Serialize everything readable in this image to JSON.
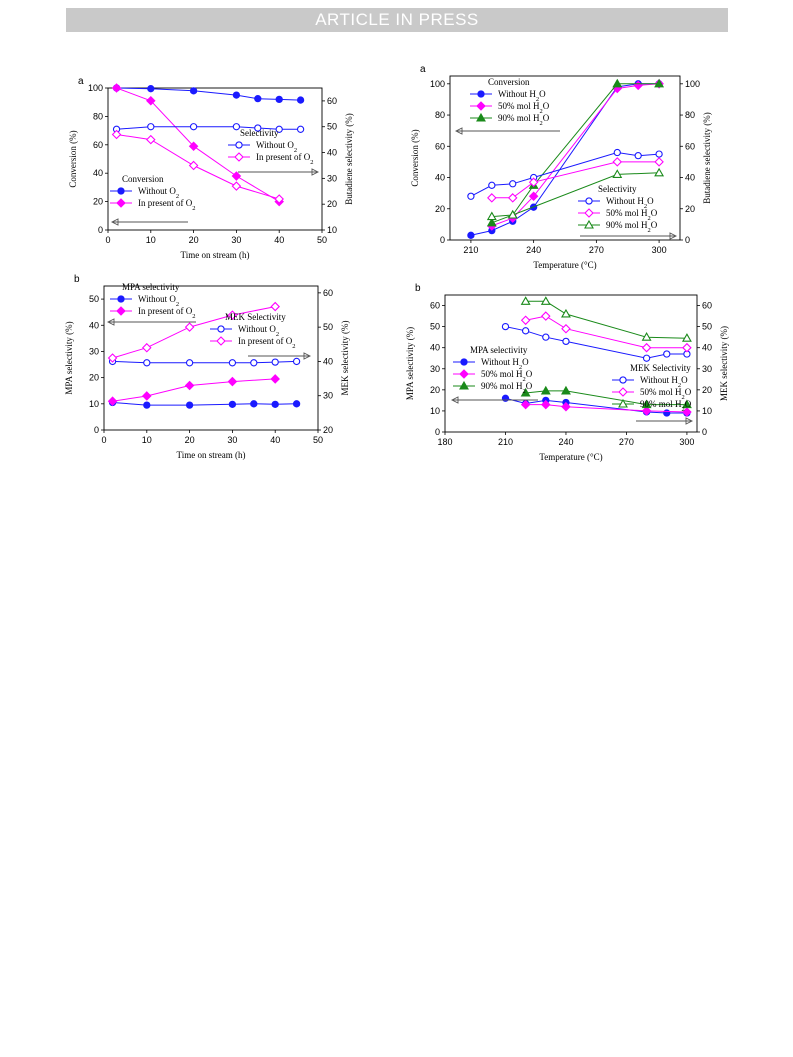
{
  "banner": "ARTICLE IN PRESS",
  "colors": {
    "blue": "#1a1aff",
    "magenta": "#ff00ff",
    "green": "#1a8a1a",
    "arrow": "#555555"
  },
  "chart_data": [
    {
      "id": "tl",
      "type": "line",
      "panel_label": "a",
      "xlabel": "Time on stream (h)",
      "ylabel": "Conversion (%)",
      "y2label": "Butadiene selectivity (%)",
      "xlim": [
        0,
        50
      ],
      "ylim": [
        0,
        100
      ],
      "y2lim": [
        10,
        65
      ],
      "xticks": [
        0,
        10,
        20,
        30,
        40,
        50
      ],
      "yticks": [
        0,
        20,
        40,
        60,
        80,
        100
      ],
      "y2ticks": [
        10,
        20,
        30,
        40,
        50,
        60
      ],
      "legends": [
        {
          "title": "Conversion",
          "items": [
            {
              "name": "Without O2",
              "label": "Without O",
              "sub": "2",
              "color": "blue",
              "marker": "circle",
              "filled": true
            },
            {
              "name": "In present of O2",
              "label": "In present of O",
              "sub": "2",
              "color": "magenta",
              "marker": "diamond",
              "filled": true
            }
          ]
        },
        {
          "title": "Selectivity",
          "items": [
            {
              "name": "Without O2",
              "label": "Without O",
              "sub": "2",
              "color": "blue",
              "marker": "circle",
              "filled": false
            },
            {
              "name": "In present of O2",
              "label": "In present of O",
              "sub": "2",
              "color": "magenta",
              "marker": "diamond",
              "filled": false
            }
          ]
        }
      ],
      "series": [
        {
          "name": "Conversion without O2",
          "axis": "left",
          "color": "blue",
          "marker": "circle",
          "filled": true,
          "x": [
            2,
            10,
            20,
            30,
            35,
            40,
            45
          ],
          "y": [
            100,
            99.5,
            98,
            95,
            92.5,
            92,
            91.5
          ]
        },
        {
          "name": "Conversion in present of O2",
          "axis": "left",
          "color": "magenta",
          "marker": "diamond",
          "filled": true,
          "x": [
            2,
            10,
            20,
            30,
            40
          ],
          "y": [
            100,
            91,
            59,
            38,
            20
          ]
        },
        {
          "name": "Selectivity without O2",
          "axis": "right",
          "color": "blue",
          "marker": "circle",
          "filled": false,
          "x": [
            2,
            10,
            20,
            30,
            35,
            40,
            45
          ],
          "y": [
            49,
            50,
            50,
            50,
            49.5,
            49,
            49
          ]
        },
        {
          "name": "Selectivity in present of O2",
          "axis": "right",
          "color": "magenta",
          "marker": "diamond",
          "filled": false,
          "x": [
            2,
            10,
            20,
            30,
            40
          ],
          "y": [
            47,
            45,
            35,
            27,
            22
          ]
        }
      ]
    },
    {
      "id": "bl",
      "type": "line",
      "panel_label": "b",
      "xlabel": "Time on stream (h)",
      "ylabel": "MPA selectivity (%)",
      "y2label": "MEK selectivity (%)",
      "xlim": [
        0,
        50
      ],
      "ylim": [
        0,
        55
      ],
      "y2lim": [
        20,
        62
      ],
      "xticks": [
        0,
        10,
        20,
        30,
        40,
        50
      ],
      "yticks": [
        0,
        10,
        20,
        30,
        40,
        50
      ],
      "y2ticks": [
        20,
        30,
        40,
        50,
        60
      ],
      "legends": [
        {
          "title": "MPA selectivity",
          "items": [
            {
              "name": "Without O2",
              "label": "Without O",
              "sub": "2",
              "color": "blue",
              "marker": "circle",
              "filled": true
            },
            {
              "name": "In present of O2",
              "label": "In present of O",
              "sub": "2",
              "color": "magenta",
              "marker": "diamond",
              "filled": true
            }
          ]
        },
        {
          "title": "MEK Selectivity",
          "items": [
            {
              "name": "Without O2",
              "label": "Without O",
              "sub": "2",
              "color": "blue",
              "marker": "circle",
              "filled": false
            },
            {
              "name": "In present of O2",
              "label": "In present of O",
              "sub": "2",
              "color": "magenta",
              "marker": "diamond",
              "filled": false
            }
          ]
        }
      ],
      "series": [
        {
          "name": "MPA without O2",
          "axis": "left",
          "color": "blue",
          "marker": "circle",
          "filled": true,
          "x": [
            2,
            10,
            20,
            30,
            35,
            40,
            45
          ],
          "y": [
            10.5,
            9.5,
            9.5,
            9.8,
            10,
            9.8,
            10
          ]
        },
        {
          "name": "MPA in present of O2",
          "axis": "left",
          "color": "magenta",
          "marker": "diamond",
          "filled": true,
          "x": [
            2,
            10,
            20,
            30,
            40
          ],
          "y": [
            11,
            13,
            17,
            18.5,
            19.5
          ]
        },
        {
          "name": "MEK without O2",
          "axis": "right",
          "color": "blue",
          "marker": "circle",
          "filled": false,
          "x": [
            2,
            10,
            20,
            30,
            35,
            40,
            45
          ],
          "y": [
            40,
            39.6,
            39.6,
            39.6,
            39.6,
            39.8,
            40
          ]
        },
        {
          "name": "MEK in present of O2",
          "axis": "right",
          "color": "magenta",
          "marker": "diamond",
          "filled": false,
          "x": [
            2,
            10,
            20,
            30,
            40
          ],
          "y": [
            41,
            44,
            50,
            53.5,
            56
          ]
        }
      ]
    },
    {
      "id": "tr",
      "type": "line",
      "panel_label": "a",
      "xlabel": "Temperature (°C)",
      "ylabel": "Conversion (%)",
      "y2label": "Butadiene selectivity (%)",
      "xlim": [
        200,
        310
      ],
      "ylim": [
        0,
        105
      ],
      "y2lim": [
        0,
        105
      ],
      "xticks": [
        210,
        240,
        270,
        300
      ],
      "yticks": [
        0,
        20,
        40,
        60,
        80,
        100
      ],
      "y2ticks": [
        0,
        20,
        40,
        60,
        80,
        100
      ],
      "legends": [
        {
          "title": "Conversion",
          "items": [
            {
              "name": "Without H2O",
              "label": "Without H",
              "sub": "2",
              "tail": "O",
              "color": "blue",
              "marker": "circle",
              "filled": true
            },
            {
              "name": "50% mol H2O",
              "label": "50% mol H",
              "sub": "2",
              "tail": "O",
              "color": "magenta",
              "marker": "diamond",
              "filled": true
            },
            {
              "name": "90% mol H2O",
              "label": "90% mol H",
              "sub": "2",
              "tail": "O",
              "color": "green",
              "marker": "triangle",
              "filled": true
            }
          ]
        },
        {
          "title": "Selectivity",
          "items": [
            {
              "name": "Without H2O",
              "label": "Without H",
              "sub": "2",
              "tail": "O",
              "color": "blue",
              "marker": "circle",
              "filled": false
            },
            {
              "name": "50% mol H2O",
              "label": "50% mol H",
              "sub": "2",
              "tail": "O",
              "color": "magenta",
              "marker": "diamond",
              "filled": false
            },
            {
              "name": "90% mol H2O",
              "label": "90% mol H",
              "sub": "2",
              "tail": "O",
              "color": "green",
              "marker": "triangle",
              "filled": false
            }
          ]
        }
      ],
      "series": [
        {
          "name": "Conversion without H2O",
          "axis": "left",
          "color": "blue",
          "marker": "circle",
          "filled": true,
          "x": [
            210,
            220,
            230,
            240,
            280,
            290,
            300
          ],
          "y": [
            3,
            6,
            12,
            21,
            98,
            100,
            100
          ]
        },
        {
          "name": "Conversion 50% mol H2O",
          "axis": "left",
          "color": "magenta",
          "marker": "diamond",
          "filled": true,
          "x": [
            220,
            230,
            240,
            280,
            290,
            300
          ],
          "y": [
            9,
            14,
            28,
            97,
            99,
            100
          ]
        },
        {
          "name": "Conversion 90% mol H2O",
          "axis": "left",
          "color": "green",
          "marker": "triangle",
          "filled": true,
          "x": [
            220,
            230,
            240,
            280,
            300
          ],
          "y": [
            11,
            16,
            35,
            100,
            100
          ]
        },
        {
          "name": "Selectivity without H2O",
          "axis": "right",
          "color": "blue",
          "marker": "circle",
          "filled": false,
          "x": [
            210,
            220,
            230,
            240,
            280,
            290,
            300
          ],
          "y": [
            28,
            35,
            36,
            40,
            56,
            54,
            55
          ]
        },
        {
          "name": "Selectivity 50% mol H2O",
          "axis": "right",
          "color": "magenta",
          "marker": "diamond",
          "filled": false,
          "x": [
            220,
            230,
            240,
            280,
            300
          ],
          "y": [
            27,
            27,
            37,
            50,
            50
          ]
        },
        {
          "name": "Selectivity 90% mol H2O",
          "axis": "right",
          "color": "green",
          "marker": "triangle",
          "filled": false,
          "x": [
            220,
            230,
            280,
            300
          ],
          "y": [
            15,
            16,
            42,
            43
          ]
        }
      ]
    },
    {
      "id": "br",
      "type": "line",
      "panel_label": "b",
      "xlabel": "Temperature (°C)",
      "ylabel": "MPA selectivity (%)",
      "y2label": "MEK selectivity (%)",
      "xlim": [
        180,
        305
      ],
      "ylim": [
        0,
        65
      ],
      "y2lim": [
        0,
        65
      ],
      "xticks": [
        180,
        210,
        240,
        270,
        300
      ],
      "yticks": [
        0,
        10,
        20,
        30,
        40,
        50,
        60
      ],
      "y2ticks": [
        0,
        10,
        20,
        30,
        40,
        50,
        60
      ],
      "legends": [
        {
          "title": "MPA selectivity",
          "items": [
            {
              "name": "Without H2O",
              "label": "Without H",
              "sub": "2",
              "tail": "O",
              "color": "blue",
              "marker": "circle",
              "filled": true
            },
            {
              "name": "50% mol H2O",
              "label": "50% mol H",
              "sub": "2",
              "tail": "O",
              "color": "magenta",
              "marker": "diamond",
              "filled": true
            },
            {
              "name": "90% mol H2O",
              "label": "90% mol H",
              "sub": "2",
              "tail": "O",
              "color": "green",
              "marker": "triangle",
              "filled": true
            }
          ]
        },
        {
          "title": "MEK Selectivity",
          "items": [
            {
              "name": "Without H2O",
              "label": "Without H",
              "sub": "2",
              "tail": "O",
              "color": "blue",
              "marker": "circle",
              "filled": false
            },
            {
              "name": "50% mol H2O",
              "label": "50% mol H",
              "sub": "2",
              "tail": "O",
              "color": "magenta",
              "marker": "diamond",
              "filled": false
            },
            {
              "name": "90% mol H2O",
              "label": "90% mol H",
              "sub": "2",
              "tail": "O",
              "color": "green",
              "marker": "triangle",
              "filled": false
            }
          ]
        }
      ],
      "series": [
        {
          "name": "MPA without H2O",
          "axis": "left",
          "color": "blue",
          "marker": "circle",
          "filled": true,
          "x": [
            210,
            220,
            230,
            240,
            280,
            290,
            300
          ],
          "y": [
            16,
            13.5,
            15,
            14,
            9.5,
            9,
            9
          ]
        },
        {
          "name": "MPA 50% mol H2O",
          "axis": "left",
          "color": "magenta",
          "marker": "diamond",
          "filled": true,
          "x": [
            220,
            230,
            240,
            280,
            300
          ],
          "y": [
            13,
            13,
            12,
            10,
            9.5
          ]
        },
        {
          "name": "MPA 90% mol H2O",
          "axis": "left",
          "color": "green",
          "marker": "triangle",
          "filled": true,
          "x": [
            220,
            230,
            240,
            280,
            300
          ],
          "y": [
            18.5,
            19.5,
            19.5,
            13,
            13
          ]
        },
        {
          "name": "MEK without H2O",
          "axis": "right",
          "color": "blue",
          "marker": "circle",
          "filled": false,
          "x": [
            210,
            220,
            230,
            240,
            280,
            290,
            300
          ],
          "y": [
            50,
            48,
            45,
            43,
            35,
            37,
            37
          ]
        },
        {
          "name": "MEK 50% mol H2O",
          "axis": "right",
          "color": "magenta",
          "marker": "diamond",
          "filled": false,
          "x": [
            220,
            230,
            240,
            280,
            300
          ],
          "y": [
            53,
            55,
            49,
            40,
            40
          ]
        },
        {
          "name": "MEK 90% mol H2O",
          "axis": "right",
          "color": "green",
          "marker": "triangle",
          "filled": false,
          "x": [
            220,
            230,
            240,
            280,
            300
          ],
          "y": [
            62,
            62,
            56,
            45,
            44.5
          ]
        }
      ]
    }
  ]
}
